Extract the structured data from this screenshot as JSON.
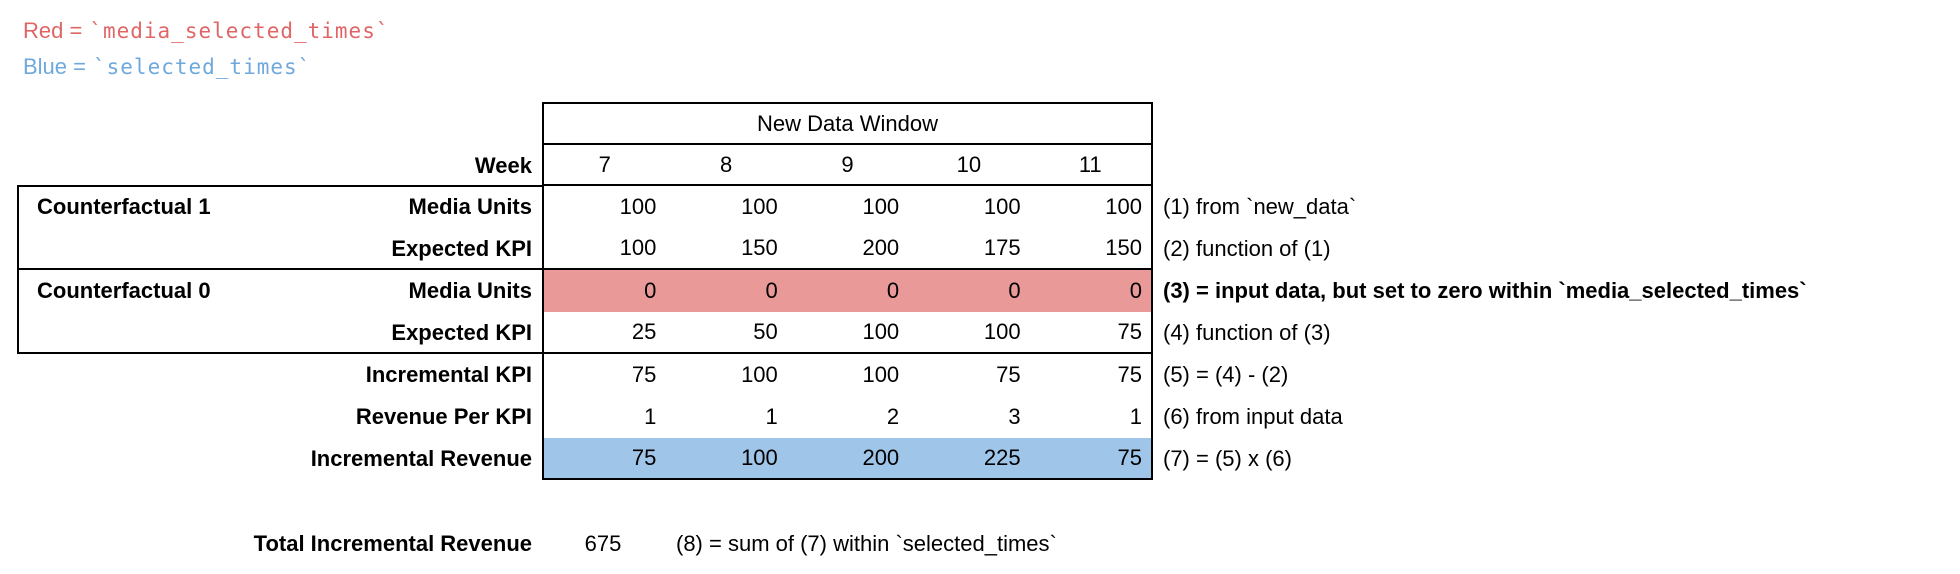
{
  "legend": {
    "red_label": "Red =",
    "red_value": "`media_selected_times`",
    "red_color": "#e06666",
    "blue_label": "Blue =",
    "blue_value": "`selected_times`",
    "blue_color": "#6fa8dc"
  },
  "table": {
    "header": "New Data Window",
    "week_label": "Week",
    "weeks": [
      "7",
      "8",
      "9",
      "10",
      "11"
    ],
    "groups": [
      {
        "label": "Counterfactual 1"
      },
      {
        "label": "Counterfactual 0"
      }
    ],
    "highlight_red": "#ea9999",
    "highlight_blue": "#9fc5e8",
    "rows": [
      {
        "label": "Media Units",
        "values": [
          "100",
          "100",
          "100",
          "100",
          "100"
        ],
        "highlight": "none",
        "annotation": "(1) from `new_data`"
      },
      {
        "label": "Expected KPI",
        "values": [
          "100",
          "150",
          "200",
          "175",
          "150"
        ],
        "highlight": "none",
        "annotation": "(2) function of (1)"
      },
      {
        "label": "Media Units",
        "values": [
          "0",
          "0",
          "0",
          "0",
          "0"
        ],
        "highlight": "red",
        "annotation": "(3) = input data, but set to zero within `media_selected_times`"
      },
      {
        "label": "Expected KPI",
        "values": [
          "25",
          "50",
          "100",
          "100",
          "75"
        ],
        "highlight": "none",
        "annotation": "(4) function of (3)"
      },
      {
        "label": "Incremental KPI",
        "values": [
          "75",
          "100",
          "100",
          "75",
          "75"
        ],
        "highlight": "none",
        "annotation": "(5) = (4) - (2)"
      },
      {
        "label": "Revenue Per KPI",
        "values": [
          "1",
          "1",
          "2",
          "3",
          "1"
        ],
        "highlight": "none",
        "annotation": "(6) from input data"
      },
      {
        "label": "Incremental Revenue",
        "values": [
          "75",
          "100",
          "200",
          "225",
          "75"
        ],
        "highlight": "blue",
        "annotation": "(7) = (5) x (6)"
      }
    ]
  },
  "total": {
    "label": "Total Incremental Revenue",
    "value": "675",
    "annotation": "(8) = sum of (7) within `selected_times`"
  }
}
